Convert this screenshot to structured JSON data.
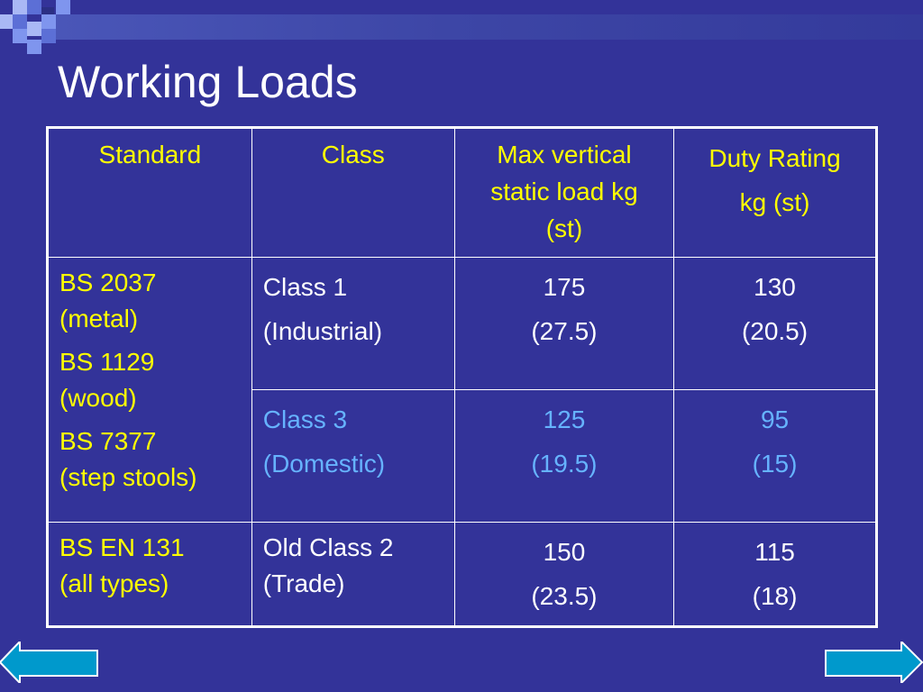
{
  "slide": {
    "title": "Working Loads"
  },
  "table": {
    "headers": {
      "standard": "Standard",
      "class": "Class",
      "max_load": [
        "Max vertical",
        "static load kg",
        "(st)"
      ],
      "duty": [
        "Duty Rating",
        "kg (st)"
      ]
    },
    "standards_group_1": [
      "BS 2037",
      "(metal)",
      "BS 1129",
      "(wood)",
      "BS 7377",
      "(step stools)"
    ],
    "row_class1": {
      "class": [
        "Class 1",
        "(Industrial)"
      ],
      "max_load": [
        "175",
        "(27.5)"
      ],
      "duty": [
        "130",
        "(20.5)"
      ]
    },
    "row_class3": {
      "class": [
        "Class 3",
        "(Domestic)"
      ],
      "max_load": [
        "125",
        "(19.5)"
      ],
      "duty": [
        "95",
        "(15)"
      ]
    },
    "row_en131": {
      "standard": [
        "BS EN 131",
        "(all types)"
      ],
      "class": [
        "Old Class 2",
        "(Trade)"
      ],
      "max_load": [
        "150",
        "(23.5)"
      ],
      "duty": [
        "115",
        "(18)"
      ]
    }
  },
  "navigation": {
    "prev_icon": "arrow-left-icon",
    "next_icon": "arrow-right-icon"
  },
  "colors": {
    "background": "#333399",
    "header_text": "#ffff00",
    "body_text": "#ffffff",
    "highlight_text": "#66b3ff",
    "button_fill": "#0099cc"
  }
}
